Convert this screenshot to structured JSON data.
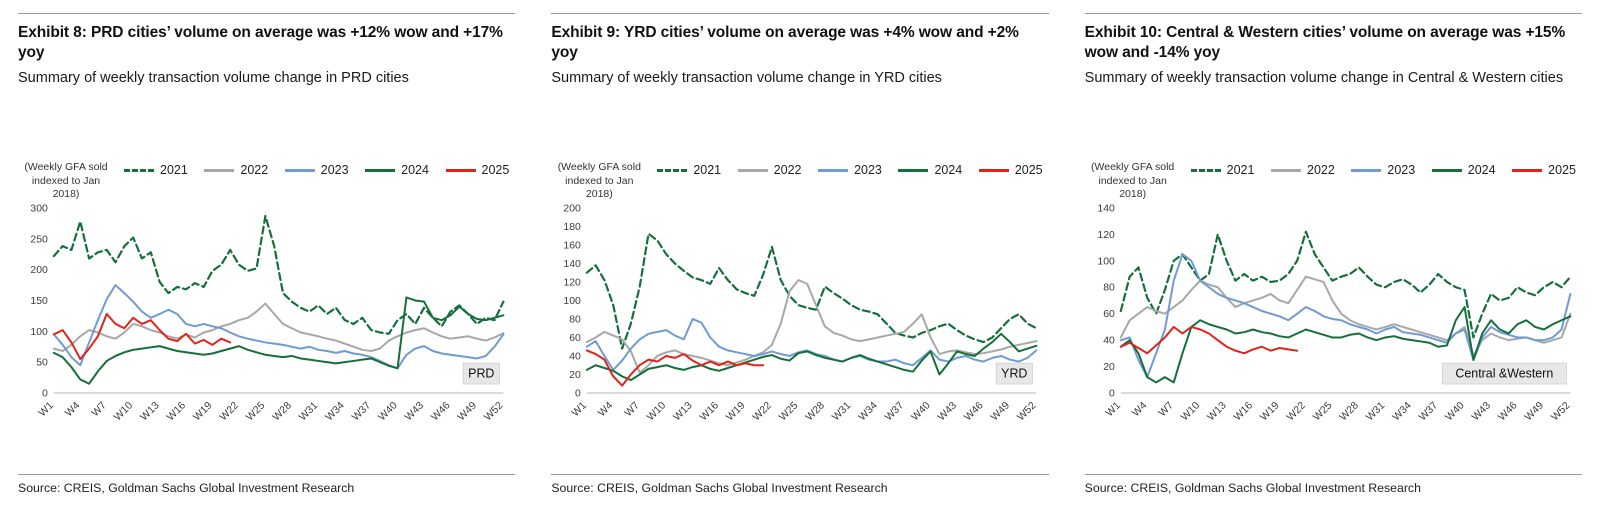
{
  "shared": {
    "axis_note": "(Weekly GFA sold\nindexed to Jan\n2018)"
  },
  "panels": [
    {
      "exhibit_title": "Exhibit 8: PRD cities’ volume on average was +12% wow and +17% yoy",
      "subtitle": "Summary of weekly transaction volume change in PRD cities",
      "source": "Source: CREIS, Goldman Sachs Global Investment Research"
    },
    {
      "exhibit_title": "Exhibit 9: YRD cities’ volume on average was +4% wow and +2% yoy",
      "subtitle": "Summary of weekly transaction volume change in YRD cities",
      "source": "Source: CREIS, Goldman Sachs Global Investment Research"
    },
    {
      "exhibit_title": "Exhibit 10: Central & Western cities’ volume on average was +15% wow and -14% yoy",
      "subtitle": "Summary of weekly transaction volume change in Central & Western cities",
      "source": "Source: CREIS, Goldman Sachs Global Investment Research"
    }
  ],
  "chart_data": [
    {
      "type": "line",
      "title": "Summary of weekly transaction volume change in PRD cities",
      "region_label": "PRD",
      "ylabel": "(Weekly GFA sold indexed to Jan 2018)",
      "x_unit": "week",
      "x_range": [
        1,
        52
      ],
      "x_tick_labels": [
        "W1",
        "W4",
        "W7",
        "W10",
        "W13",
        "W16",
        "W19",
        "W22",
        "W25",
        "W28",
        "W31",
        "W34",
        "W37",
        "W40",
        "W43",
        "W46",
        "W49",
        "W52"
      ],
      "ylim": [
        0,
        300
      ],
      "ytick_step": 50,
      "grid": false,
      "legend_position": "top",
      "series": [
        {
          "name": "2021",
          "color": "#146f3b",
          "style": "dashed",
          "start_week": 1,
          "values": [
            222,
            238,
            232,
            278,
            218,
            228,
            232,
            212,
            238,
            252,
            218,
            228,
            180,
            162,
            172,
            168,
            178,
            172,
            198,
            208,
            232,
            208,
            198,
            202,
            287,
            238,
            162,
            148,
            138,
            132,
            142,
            128,
            138,
            118,
            112,
            122,
            102,
            98,
            96,
            118,
            128,
            112,
            138,
            122,
            108,
            132,
            142,
            128,
            112,
            122,
            118,
            148
          ]
        },
        {
          "name": "2022",
          "color": "#a7a7a7",
          "style": "solid",
          "start_week": 1,
          "values": [
            72,
            68,
            78,
            92,
            102,
            98,
            92,
            88,
            98,
            112,
            108,
            102,
            98,
            92,
            88,
            95,
            90,
            98,
            102,
            108,
            112,
            118,
            122,
            132,
            145,
            128,
            112,
            105,
            98,
            95,
            92,
            88,
            85,
            80,
            75,
            70,
            68,
            72,
            85,
            92,
            98,
            102,
            105,
            98,
            92,
            88,
            90,
            92,
            88,
            85,
            90,
            97
          ]
        },
        {
          "name": "2023",
          "color": "#6f9ad2",
          "style": "solid",
          "start_week": 1,
          "values": [
            95,
            78,
            58,
            45,
            82,
            118,
            152,
            175,
            162,
            148,
            132,
            122,
            128,
            135,
            128,
            112,
            108,
            112,
            108,
            105,
            98,
            92,
            88,
            85,
            82,
            80,
            78,
            75,
            72,
            75,
            70,
            68,
            65,
            68,
            64,
            62,
            58,
            52,
            45,
            40,
            62,
            72,
            76,
            68,
            64,
            62,
            60,
            58,
            56,
            60,
            75,
            95
          ]
        },
        {
          "name": "2024",
          "color": "#146f3b",
          "style": "solid",
          "start_week": 1,
          "values": [
            65,
            58,
            42,
            22,
            15,
            35,
            52,
            60,
            66,
            70,
            72,
            74,
            76,
            72,
            68,
            66,
            64,
            62,
            64,
            68,
            72,
            76,
            70,
            66,
            62,
            60,
            58,
            60,
            56,
            54,
            52,
            50,
            48,
            50,
            52,
            54,
            56,
            50,
            44,
            40,
            155,
            150,
            148,
            122,
            118,
            126,
            140,
            128,
            120,
            118,
            122,
            126
          ]
        },
        {
          "name": "2025",
          "color": "#e2231a",
          "style": "solid",
          "start_week": 1,
          "values": [
            95,
            102,
            82,
            55,
            72,
            92,
            128,
            112,
            105,
            122,
            112,
            118,
            102,
            88,
            84,
            96,
            80,
            86,
            78,
            88,
            82
          ]
        }
      ]
    },
    {
      "type": "line",
      "title": "Summary of weekly transaction volume change in YRD cities",
      "region_label": "YRD",
      "ylabel": "(Weekly GFA sold indexed to Jan 2018)",
      "x_unit": "week",
      "x_range": [
        1,
        52
      ],
      "x_tick_labels": [
        "W1",
        "W4",
        "W7",
        "W10",
        "W13",
        "W16",
        "W19",
        "W22",
        "W25",
        "W28",
        "W31",
        "W34",
        "W37",
        "W40",
        "W43",
        "W46",
        "W49",
        "W52"
      ],
      "ylim": [
        0,
        200
      ],
      "ytick_step": 20,
      "grid": false,
      "legend_position": "top",
      "series": [
        {
          "name": "2021",
          "color": "#146f3b",
          "style": "dashed",
          "start_week": 1,
          "values": [
            130,
            138,
            122,
            95,
            48,
            75,
            115,
            172,
            165,
            150,
            140,
            132,
            125,
            122,
            118,
            135,
            122,
            112,
            108,
            105,
            128,
            158,
            122,
            105,
            95,
            92,
            90,
            115,
            108,
            102,
            95,
            90,
            88,
            85,
            75,
            65,
            62,
            60,
            65,
            68,
            72,
            75,
            68,
            62,
            58,
            55,
            60,
            70,
            80,
            85,
            75,
            70
          ]
        },
        {
          "name": "2022",
          "color": "#a7a7a7",
          "style": "solid",
          "start_week": 1,
          "values": [
            55,
            60,
            66,
            62,
            58,
            45,
            22,
            30,
            40,
            44,
            46,
            42,
            40,
            38,
            35,
            32,
            30,
            33,
            36,
            40,
            44,
            52,
            75,
            110,
            122,
            118,
            95,
            72,
            65,
            62,
            58,
            56,
            58,
            60,
            62,
            64,
            66,
            75,
            85,
            60,
            42,
            45,
            46,
            44,
            42,
            43,
            45,
            47,
            50,
            52,
            54,
            56
          ]
        },
        {
          "name": "2023",
          "color": "#6f9ad2",
          "style": "solid",
          "start_week": 1,
          "values": [
            50,
            56,
            40,
            25,
            35,
            48,
            58,
            64,
            66,
            68,
            62,
            58,
            80,
            76,
            60,
            50,
            46,
            44,
            42,
            40,
            42,
            45,
            42,
            40,
            44,
            46,
            42,
            40,
            36,
            34,
            38,
            40,
            36,
            34,
            34,
            36,
            32,
            30,
            38,
            46,
            36,
            34,
            38,
            40,
            36,
            34,
            38,
            40,
            36,
            34,
            38,
            46
          ]
        },
        {
          "name": "2024",
          "color": "#146f3b",
          "style": "solid",
          "start_week": 1,
          "values": [
            25,
            30,
            27,
            24,
            18,
            14,
            20,
            26,
            28,
            30,
            27,
            25,
            28,
            30,
            26,
            24,
            27,
            30,
            33,
            36,
            39,
            41,
            37,
            35,
            43,
            45,
            41,
            38,
            36,
            34,
            38,
            41,
            37,
            34,
            31,
            28,
            25,
            23,
            35,
            45,
            20,
            32,
            45,
            42,
            40,
            48,
            55,
            64,
            55,
            45,
            48,
            51
          ]
        },
        {
          "name": "2025",
          "color": "#e2231a",
          "style": "solid",
          "start_week": 1,
          "values": [
            46,
            42,
            36,
            18,
            8,
            20,
            30,
            36,
            34,
            40,
            38,
            42,
            35,
            30,
            34,
            30,
            34,
            30,
            32,
            30,
            30
          ]
        }
      ]
    },
    {
      "type": "line",
      "title": "Summary of weekly transaction volume change in Central & Western cities",
      "region_label": "Central &Western",
      "ylabel": "(Weekly GFA sold indexed to Jan 2018)",
      "x_unit": "week",
      "x_range": [
        1,
        52
      ],
      "x_tick_labels": [
        "W1",
        "W4",
        "W7",
        "W10",
        "W13",
        "W16",
        "W19",
        "W22",
        "W25",
        "W28",
        "W31",
        "W34",
        "W37",
        "W40",
        "W43",
        "W46",
        "W49",
        "W52"
      ],
      "ylim": [
        0,
        140
      ],
      "ytick_step": 20,
      "grid": false,
      "legend_position": "top",
      "series": [
        {
          "name": "2021",
          "color": "#146f3b",
          "style": "dashed",
          "start_week": 1,
          "values": [
            62,
            88,
            95,
            72,
            60,
            78,
            100,
            105,
            95,
            85,
            90,
            120,
            100,
            85,
            90,
            85,
            88,
            84,
            85,
            90,
            100,
            122,
            105,
            95,
            85,
            88,
            90,
            95,
            88,
            82,
            80,
            84,
            86,
            82,
            76,
            82,
            90,
            84,
            80,
            78,
            42,
            60,
            75,
            70,
            72,
            80,
            76,
            74,
            80,
            84,
            80,
            88
          ]
        },
        {
          "name": "2022",
          "color": "#a7a7a7",
          "style": "solid",
          "start_week": 1,
          "values": [
            42,
            55,
            60,
            65,
            62,
            60,
            65,
            70,
            78,
            85,
            82,
            80,
            72,
            65,
            68,
            70,
            72,
            75,
            70,
            68,
            78,
            88,
            86,
            84,
            70,
            60,
            55,
            52,
            50,
            48,
            50,
            52,
            50,
            48,
            46,
            44,
            42,
            40,
            45,
            50,
            28,
            40,
            45,
            42,
            40,
            41,
            42,
            40,
            38,
            40,
            42,
            60
          ]
        },
        {
          "name": "2023",
          "color": "#6f9ad2",
          "style": "solid",
          "start_week": 1,
          "values": [
            40,
            42,
            25,
            12,
            30,
            48,
            85,
            105,
            100,
            85,
            80,
            75,
            72,
            70,
            68,
            65,
            62,
            60,
            58,
            55,
            60,
            65,
            62,
            58,
            56,
            55,
            52,
            50,
            48,
            45,
            48,
            50,
            46,
            45,
            44,
            42,
            40,
            38,
            45,
            48,
            25,
            42,
            50,
            46,
            44,
            42,
            42,
            40,
            40,
            42,
            48,
            75
          ]
        },
        {
          "name": "2024",
          "color": "#146f3b",
          "style": "solid",
          "start_week": 1,
          "values": [
            35,
            40,
            30,
            12,
            8,
            12,
            8,
            30,
            50,
            55,
            52,
            50,
            48,
            45,
            46,
            48,
            46,
            45,
            43,
            42,
            45,
            48,
            46,
            44,
            42,
            42,
            44,
            45,
            42,
            40,
            42,
            43,
            41,
            40,
            39,
            38,
            35,
            36,
            55,
            65,
            25,
            45,
            55,
            48,
            45,
            52,
            55,
            50,
            48,
            52,
            55,
            58
          ]
        },
        {
          "name": "2025",
          "color": "#e2231a",
          "style": "solid",
          "start_week": 1,
          "values": [
            35,
            38,
            34,
            30,
            36,
            42,
            50,
            45,
            50,
            48,
            45,
            40,
            35,
            32,
            30,
            33,
            35,
            32,
            34,
            33,
            32
          ]
        }
      ]
    }
  ]
}
